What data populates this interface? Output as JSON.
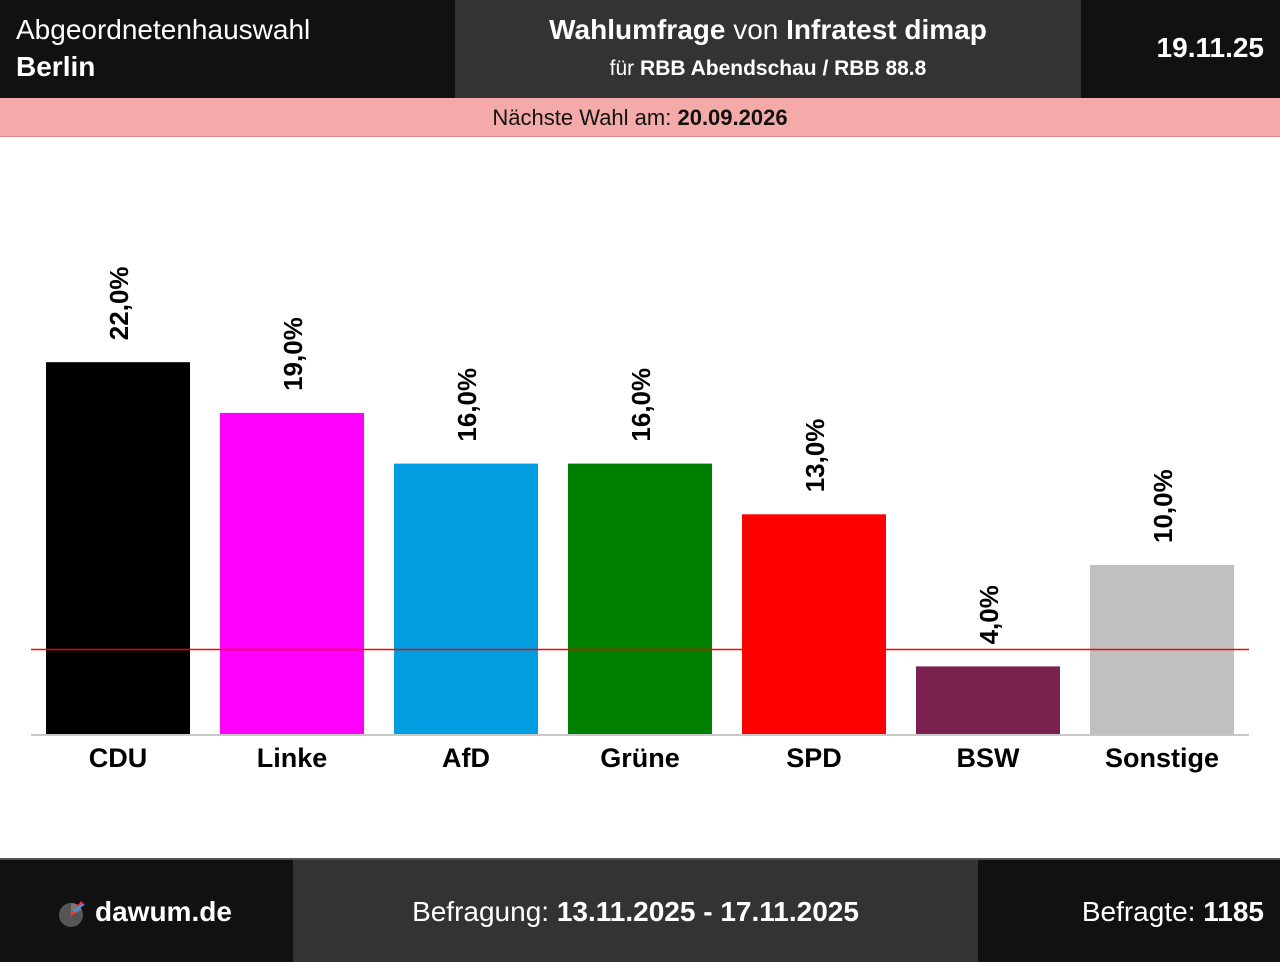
{
  "header": {
    "election_type": "Abgeordnetenhauswahl",
    "region": "Berlin",
    "title_part1": "Wahlumfrage",
    "title_conj": "von",
    "institute": "Infratest dimap",
    "client_prefix": "für",
    "client": "RBB Abendschau / RBB 88.8",
    "date": "19.11.25"
  },
  "next_election": {
    "label": "Nächste Wahl am:",
    "date": "20.09.2026"
  },
  "footer": {
    "site": "dawum.de",
    "survey_label": "Befragung:",
    "survey_period": "13.11.2025 - 17.11.2025",
    "respondents_label": "Befragte:",
    "respondents": "1185"
  },
  "colors": {
    "threshold_line": "#ff0000",
    "background": "#ffffff"
  },
  "chart_data": {
    "type": "bar",
    "categories": [
      "CDU",
      "Linke",
      "AfD",
      "Grüne",
      "SPD",
      "BSW",
      "Sonstige"
    ],
    "values": [
      22.0,
      19.0,
      16.0,
      16.0,
      13.0,
      4.0,
      10.0
    ],
    "value_labels": [
      "22,0%",
      "19,0%",
      "16,0%",
      "16,0%",
      "13,0%",
      "4,0%",
      "10,0%"
    ],
    "colors": [
      "#000000",
      "#ff00ff",
      "#009ee0",
      "#008000",
      "#ff0000",
      "#7a2150",
      "#c0c0c0"
    ],
    "threshold": 5.0,
    "ylim": [
      0,
      22
    ],
    "grid": false,
    "xlabel": "",
    "ylabel": ""
  }
}
